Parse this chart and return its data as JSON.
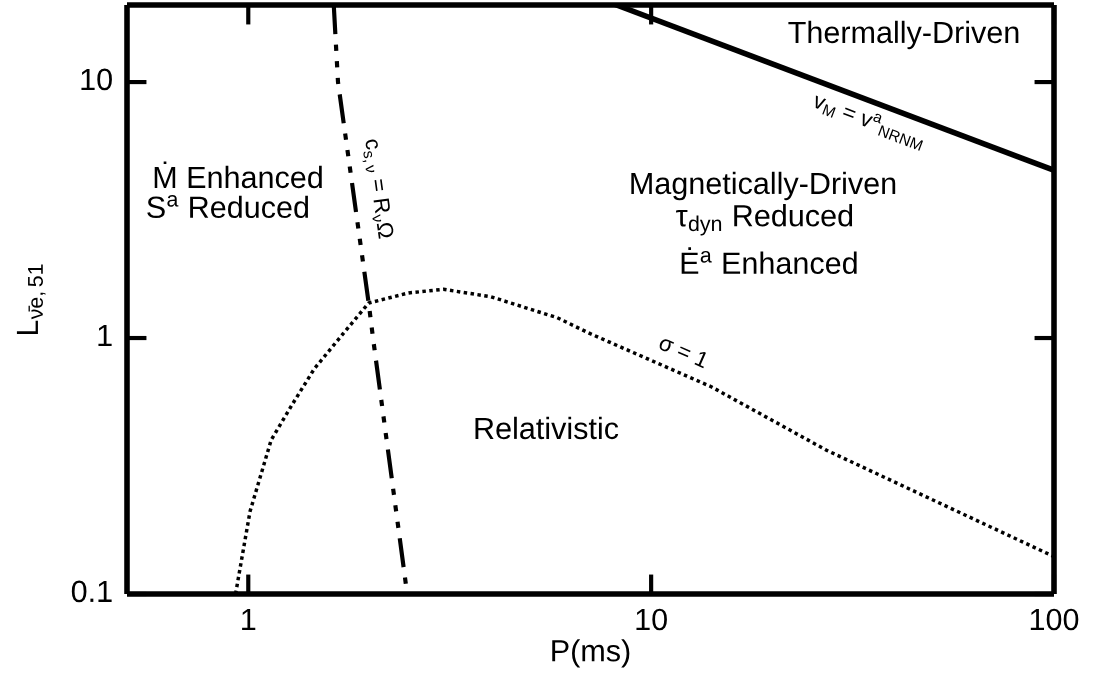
{
  "chart_data": {
    "type": "line",
    "xlabel": "P(ms)",
    "ylabel": "L$_{ν̄e,51}$",
    "log": "xy",
    "xlim": [
      0.5,
      100
    ],
    "ylim": [
      0.1,
      20
    ],
    "xticks": [
      1,
      10,
      100
    ],
    "yticks": [
      0.1,
      1,
      10
    ],
    "grid": false,
    "marker": "none",
    "series": [
      {
        "color": "#000000",
        "line_style": "solid",
        "x": [
          8.2,
          100
        ],
        "values": [
          20,
          4.52
        ]
      },
      {
        "color": "#000000",
        "line_style": "dashdotdot",
        "x": [
          1.63,
          1.67,
          1.99,
          2.04,
          2.48
        ],
        "values": [
          20,
          10,
          1.37,
          1,
          0.1
        ]
      },
      {
        "color": "#000000",
        "line_style": "dotted",
        "x": [
          0.93,
          1.01,
          1.14,
          1.29,
          1.46,
          1.72,
          1.99,
          2.5,
          3.05,
          4.0,
          5.85,
          7.06,
          14.1,
          27.2,
          100
        ],
        "values": [
          0.1,
          0.21,
          0.4,
          0.555,
          0.76,
          1.04,
          1.37,
          1.5,
          1.55,
          1.45,
          1.2,
          1.04,
          0.645,
          0.365,
          0.14
        ]
      }
    ],
    "annotations": [
      "Thermally-Driven",
      "Magnetically-Driven",
      "τ$_{dyn}$ Reduced",
      "Ė$^{a}$ Enhanced",
      "Ṁ Enhanced",
      "S$^{a}$ Reduced",
      "Relativistic",
      "c$_{s,ν}$ = R$_{ν}$Ω",
      "v$_{M}$ = v$^{a}$$_{NRNM}$",
      "σ = 1"
    ]
  }
}
